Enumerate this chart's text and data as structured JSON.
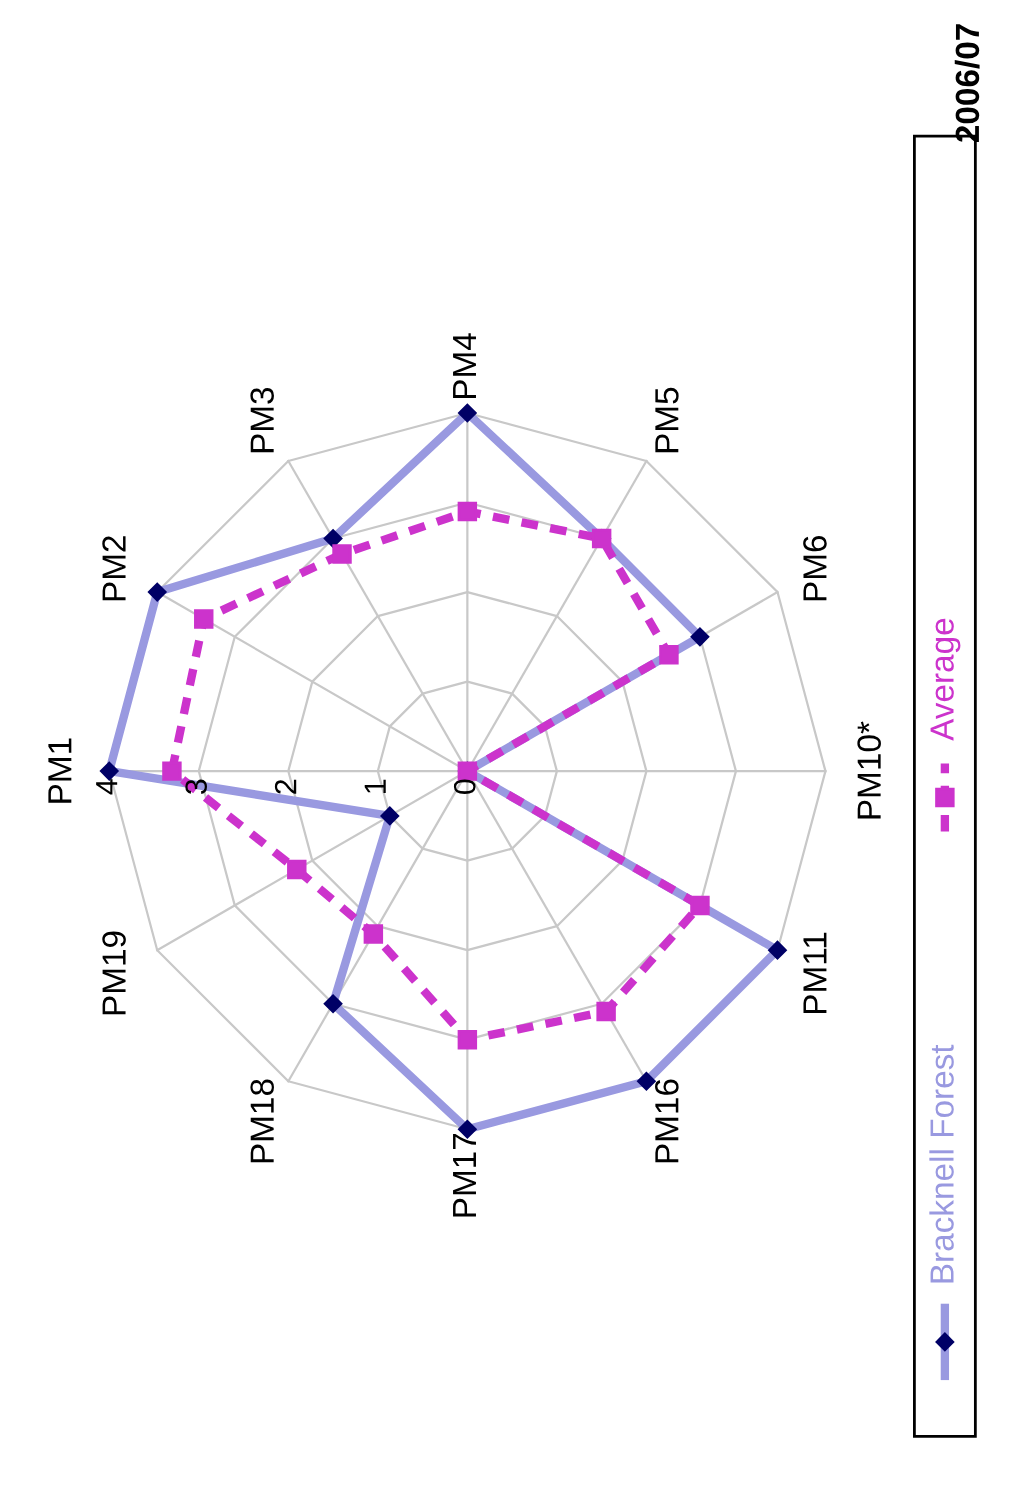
{
  "chart_data": {
    "type": "radar",
    "title": "2006/07",
    "categories": [
      "PM1",
      "PM2",
      "PM3",
      "PM4",
      "PM5",
      "PM6",
      "PM10*",
      "PM11",
      "PM16",
      "PM17",
      "PM18",
      "PM19"
    ],
    "series": [
      {
        "name": "Bracknell Forest",
        "color": "#9999e0",
        "marker": "diamond",
        "line_style": "solid",
        "values": [
          4,
          4,
          3,
          4,
          3,
          3,
          0,
          4,
          4,
          4,
          3,
          1
        ]
      },
      {
        "name": "Average",
        "color": "#cc33cc",
        "marker": "square",
        "line_style": "dashed",
        "values": [
          3.3,
          3.4,
          2.8,
          2.9,
          3.0,
          2.6,
          0,
          3.0,
          3.1,
          3.0,
          2.1,
          2.2
        ]
      }
    ],
    "ylim": [
      0,
      4
    ],
    "yticks": [
      0,
      1,
      2,
      3,
      4
    ],
    "grid": true,
    "legend": "right"
  }
}
